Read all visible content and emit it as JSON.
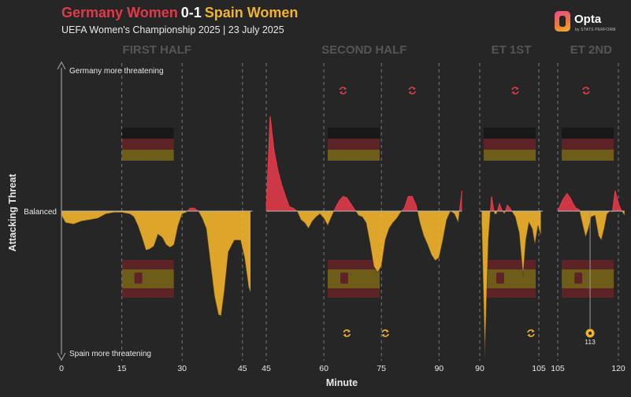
{
  "header": {
    "home_team": "Germany Women",
    "score": "0-1",
    "away_team": "Spain Women",
    "subtitle": "UEFA Women's Championship 2025 | 23 July 2025"
  },
  "brand": {
    "name": "Opta",
    "tagline": "by STATS PERFORM"
  },
  "colors": {
    "home": "#e03a4a",
    "away": "#f2b42a",
    "background": "#262626"
  },
  "chart_data": {
    "type": "area",
    "xlabel": "Minute",
    "ylabel": "Attacking Threat",
    "y_top_label": "Germany more threatening",
    "y_bottom_label": "Spain more threatening",
    "y_mid_label": "Balanced",
    "ylim": [
      -1,
      1
    ],
    "periods": [
      {
        "name": "FIRST HALF",
        "xlim": [
          0,
          47.5
        ],
        "ticks": [
          0,
          15,
          30,
          45
        ],
        "gridlines": [
          15,
          30,
          45
        ],
        "series": [
          [
            0,
            -0.03
          ],
          [
            1,
            -0.08
          ],
          [
            3,
            -0.09
          ],
          [
            5,
            -0.07
          ],
          [
            7,
            -0.06
          ],
          [
            9,
            -0.05
          ],
          [
            11,
            -0.02
          ],
          [
            13,
            -0.01
          ],
          [
            15,
            -0.01
          ],
          [
            17,
            -0.02
          ],
          [
            18,
            -0.04
          ],
          [
            19,
            -0.1
          ],
          [
            20,
            -0.18
          ],
          [
            21,
            -0.27
          ],
          [
            22,
            -0.26
          ],
          [
            23,
            -0.24
          ],
          [
            24,
            -0.16
          ],
          [
            25,
            -0.18
          ],
          [
            26,
            -0.23
          ],
          [
            27,
            -0.25
          ],
          [
            28,
            -0.23
          ],
          [
            29,
            -0.1
          ],
          [
            30,
            -0.02
          ],
          [
            31,
            -0.01
          ],
          [
            32,
            0.02
          ],
          [
            33,
            0.02
          ],
          [
            34,
            0
          ],
          [
            35,
            -0.05
          ],
          [
            36,
            -0.12
          ],
          [
            37,
            -0.35
          ],
          [
            38,
            -0.58
          ],
          [
            39,
            -0.71
          ],
          [
            39.7,
            -0.72
          ],
          [
            40.5,
            -0.55
          ],
          [
            41.5,
            -0.28
          ],
          [
            43,
            -0.2
          ],
          [
            44.5,
            -0.2
          ],
          [
            45.5,
            -0.32
          ],
          [
            46.5,
            -0.52
          ],
          [
            47,
            -0.56
          ]
        ]
      },
      {
        "name": "SECOND HALF",
        "xlim": [
          45,
          96
        ],
        "ticks": [
          45,
          60,
          75,
          90
        ],
        "gridlines": [
          45,
          60,
          75,
          90
        ],
        "series": [
          [
            45,
            0
          ],
          [
            46,
            0.65
          ],
          [
            47,
            0.42
          ],
          [
            48,
            0.28
          ],
          [
            49,
            0.18
          ],
          [
            50,
            0.1
          ],
          [
            51,
            0.03
          ],
          [
            52,
            0.02
          ],
          [
            53,
            0
          ],
          [
            54,
            -0.06
          ],
          [
            55,
            -0.08
          ],
          [
            56,
            -0.12
          ],
          [
            57,
            -0.07
          ],
          [
            58,
            -0.04
          ],
          [
            59,
            -0.02
          ],
          [
            60,
            -0.05
          ],
          [
            61,
            -0.1
          ],
          [
            62,
            -0.04
          ],
          [
            63,
            0.02
          ],
          [
            64,
            0.07
          ],
          [
            65,
            0.1
          ],
          [
            66,
            0.09
          ],
          [
            67,
            0.05
          ],
          [
            68,
            0.01
          ],
          [
            69,
            -0.03
          ],
          [
            70,
            -0.04
          ],
          [
            71,
            -0.08
          ],
          [
            72,
            -0.22
          ],
          [
            73,
            -0.38
          ],
          [
            74,
            -0.42
          ],
          [
            75,
            -0.38
          ],
          [
            76,
            -0.2
          ],
          [
            77,
            -0.12
          ],
          [
            78,
            -0.08
          ],
          [
            79,
            -0.05
          ],
          [
            80,
            -0.01
          ],
          [
            81,
            0.02
          ],
          [
            82,
            0.1
          ],
          [
            83,
            0.1
          ],
          [
            84,
            0.04
          ],
          [
            85,
            -0.08
          ],
          [
            86,
            -0.17
          ],
          [
            87,
            -0.23
          ],
          [
            88,
            -0.3
          ],
          [
            89,
            -0.34
          ],
          [
            90,
            -0.32
          ],
          [
            91,
            -0.2
          ],
          [
            92,
            -0.06
          ],
          [
            93,
            0
          ],
          [
            94,
            -0.02
          ],
          [
            95,
            -0.08
          ],
          [
            96,
            0.14
          ]
        ]
      },
      {
        "name": "ET 1ST",
        "xlim": [
          90,
          106
        ],
        "ticks": [
          90,
          105
        ],
        "gridlines": [
          90,
          105
        ],
        "series": [
          [
            90.5,
            -0.1
          ],
          [
            91.3,
            -1.0
          ],
          [
            92.2,
            -0.2
          ],
          [
            93,
            0.1
          ],
          [
            93.7,
            -0.02
          ],
          [
            94.3,
            -0.02
          ],
          [
            95,
            0.05
          ],
          [
            95.7,
            0
          ],
          [
            96.3,
            -0.02
          ],
          [
            97,
            0.04
          ],
          [
            97.7,
            0.02
          ],
          [
            98.3,
            -0.01
          ],
          [
            99,
            -0.04
          ],
          [
            100,
            -0.15
          ],
          [
            101,
            -0.45
          ],
          [
            101.7,
            -0.2
          ],
          [
            102.5,
            -0.08
          ],
          [
            103.3,
            -0.12
          ],
          [
            104,
            -0.23
          ],
          [
            104.8,
            -0.1
          ],
          [
            105.5,
            -0.17
          ]
        ]
      },
      {
        "name": "ET 2ND",
        "xlim": [
          105,
          121.5
        ],
        "ticks": [
          105,
          120
        ],
        "gridlines": [
          105,
          120
        ],
        "series": [
          [
            105,
            0
          ],
          [
            106.3,
            0.08
          ],
          [
            107.3,
            0.12
          ],
          [
            108.1,
            0.09
          ],
          [
            108.8,
            0.05
          ],
          [
            109.5,
            0.02
          ],
          [
            110.3,
            0.01
          ],
          [
            111.2,
            -0.1
          ],
          [
            111.9,
            -0.18
          ],
          [
            112.6,
            -0.12
          ],
          [
            113.3,
            -0.04
          ],
          [
            114.2,
            -0.03
          ],
          [
            115.1,
            -0.17
          ],
          [
            115.8,
            -0.2
          ],
          [
            116.5,
            -0.12
          ],
          [
            117.2,
            -0.02
          ],
          [
            118,
            0
          ],
          [
            118.5,
            -0.01
          ],
          [
            119.2,
            0.14
          ],
          [
            120,
            0.05
          ],
          [
            120.8,
            0
          ],
          [
            121.5,
            -0.03
          ]
        ]
      }
    ],
    "substitutions": [
      {
        "team": "Germany",
        "minute": 65
      },
      {
        "team": "Germany",
        "minute": 83
      },
      {
        "team": "Germany",
        "minute": 99
      },
      {
        "team": "Germany",
        "minute": 112
      },
      {
        "team": "Spain",
        "minute": 66
      },
      {
        "team": "Spain",
        "minute": 76
      },
      {
        "team": "Spain",
        "minute": 103
      }
    ],
    "goals": [
      {
        "team": "Spain",
        "minute": 113,
        "label": "113"
      }
    ]
  }
}
